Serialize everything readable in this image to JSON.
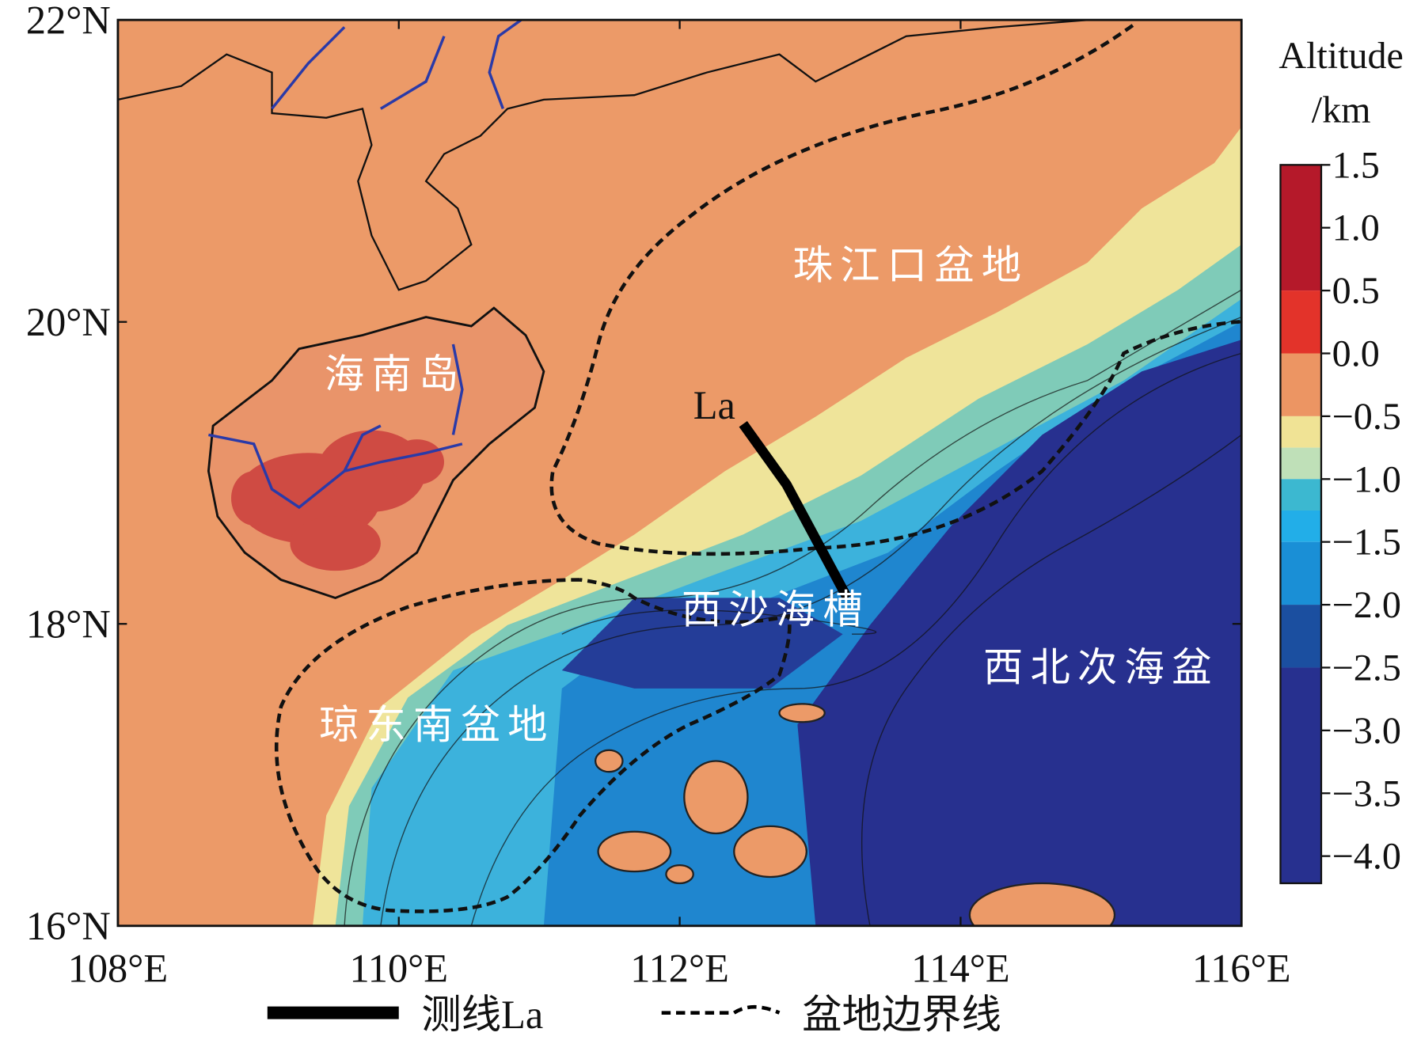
{
  "map": {
    "x_ticks": [
      "108°E",
      "110°E",
      "112°E",
      "114°E",
      "116°E"
    ],
    "y_ticks": [
      "22°N",
      "20°N",
      "18°N",
      "16°N"
    ],
    "regions": [
      "珠江口盆地",
      "海南岛",
      "西沙海槽",
      "西北次海盆",
      "琼东南盆地"
    ],
    "survey_line_label": "La"
  },
  "colorbar": {
    "title": [
      "Altitude",
      "/km"
    ],
    "ticks": [
      "1.5",
      "1.0",
      "0.5",
      "0.0",
      "−0.5",
      "−1.0",
      "−1.5",
      "−2.0",
      "−2.5",
      "−3.0",
      "−3.5",
      "−4.0"
    ]
  },
  "legend": [
    "测线La",
    "盆地边界线"
  ]
}
